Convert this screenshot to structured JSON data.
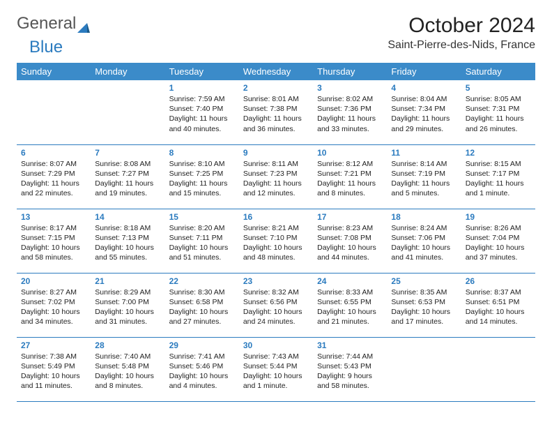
{
  "logo": {
    "part1": "General",
    "part2": "Blue"
  },
  "header": {
    "title": "October 2024",
    "location": "Saint-Pierre-des-Nids, France"
  },
  "colors": {
    "header_bg": "#3b8bc9",
    "accent": "#2b7bbf",
    "text": "#222222",
    "bg": "#ffffff"
  },
  "day_labels": [
    "Sunday",
    "Monday",
    "Tuesday",
    "Wednesday",
    "Thursday",
    "Friday",
    "Saturday"
  ],
  "weeks": [
    [
      null,
      null,
      {
        "n": "1",
        "sr": "7:59 AM",
        "ss": "7:40 PM",
        "dl": "11 hours and 40 minutes."
      },
      {
        "n": "2",
        "sr": "8:01 AM",
        "ss": "7:38 PM",
        "dl": "11 hours and 36 minutes."
      },
      {
        "n": "3",
        "sr": "8:02 AM",
        "ss": "7:36 PM",
        "dl": "11 hours and 33 minutes."
      },
      {
        "n": "4",
        "sr": "8:04 AM",
        "ss": "7:34 PM",
        "dl": "11 hours and 29 minutes."
      },
      {
        "n": "5",
        "sr": "8:05 AM",
        "ss": "7:31 PM",
        "dl": "11 hours and 26 minutes."
      }
    ],
    [
      {
        "n": "6",
        "sr": "8:07 AM",
        "ss": "7:29 PM",
        "dl": "11 hours and 22 minutes."
      },
      {
        "n": "7",
        "sr": "8:08 AM",
        "ss": "7:27 PM",
        "dl": "11 hours and 19 minutes."
      },
      {
        "n": "8",
        "sr": "8:10 AM",
        "ss": "7:25 PM",
        "dl": "11 hours and 15 minutes."
      },
      {
        "n": "9",
        "sr": "8:11 AM",
        "ss": "7:23 PM",
        "dl": "11 hours and 12 minutes."
      },
      {
        "n": "10",
        "sr": "8:12 AM",
        "ss": "7:21 PM",
        "dl": "11 hours and 8 minutes."
      },
      {
        "n": "11",
        "sr": "8:14 AM",
        "ss": "7:19 PM",
        "dl": "11 hours and 5 minutes."
      },
      {
        "n": "12",
        "sr": "8:15 AM",
        "ss": "7:17 PM",
        "dl": "11 hours and 1 minute."
      }
    ],
    [
      {
        "n": "13",
        "sr": "8:17 AM",
        "ss": "7:15 PM",
        "dl": "10 hours and 58 minutes."
      },
      {
        "n": "14",
        "sr": "8:18 AM",
        "ss": "7:13 PM",
        "dl": "10 hours and 55 minutes."
      },
      {
        "n": "15",
        "sr": "8:20 AM",
        "ss": "7:11 PM",
        "dl": "10 hours and 51 minutes."
      },
      {
        "n": "16",
        "sr": "8:21 AM",
        "ss": "7:10 PM",
        "dl": "10 hours and 48 minutes."
      },
      {
        "n": "17",
        "sr": "8:23 AM",
        "ss": "7:08 PM",
        "dl": "10 hours and 44 minutes."
      },
      {
        "n": "18",
        "sr": "8:24 AM",
        "ss": "7:06 PM",
        "dl": "10 hours and 41 minutes."
      },
      {
        "n": "19",
        "sr": "8:26 AM",
        "ss": "7:04 PM",
        "dl": "10 hours and 37 minutes."
      }
    ],
    [
      {
        "n": "20",
        "sr": "8:27 AM",
        "ss": "7:02 PM",
        "dl": "10 hours and 34 minutes."
      },
      {
        "n": "21",
        "sr": "8:29 AM",
        "ss": "7:00 PM",
        "dl": "10 hours and 31 minutes."
      },
      {
        "n": "22",
        "sr": "8:30 AM",
        "ss": "6:58 PM",
        "dl": "10 hours and 27 minutes."
      },
      {
        "n": "23",
        "sr": "8:32 AM",
        "ss": "6:56 PM",
        "dl": "10 hours and 24 minutes."
      },
      {
        "n": "24",
        "sr": "8:33 AM",
        "ss": "6:55 PM",
        "dl": "10 hours and 21 minutes."
      },
      {
        "n": "25",
        "sr": "8:35 AM",
        "ss": "6:53 PM",
        "dl": "10 hours and 17 minutes."
      },
      {
        "n": "26",
        "sr": "8:37 AM",
        "ss": "6:51 PM",
        "dl": "10 hours and 14 minutes."
      }
    ],
    [
      {
        "n": "27",
        "sr": "7:38 AM",
        "ss": "5:49 PM",
        "dl": "10 hours and 11 minutes."
      },
      {
        "n": "28",
        "sr": "7:40 AM",
        "ss": "5:48 PM",
        "dl": "10 hours and 8 minutes."
      },
      {
        "n": "29",
        "sr": "7:41 AM",
        "ss": "5:46 PM",
        "dl": "10 hours and 4 minutes."
      },
      {
        "n": "30",
        "sr": "7:43 AM",
        "ss": "5:44 PM",
        "dl": "10 hours and 1 minute."
      },
      {
        "n": "31",
        "sr": "7:44 AM",
        "ss": "5:43 PM",
        "dl": "9 hours and 58 minutes."
      },
      null,
      null
    ]
  ]
}
